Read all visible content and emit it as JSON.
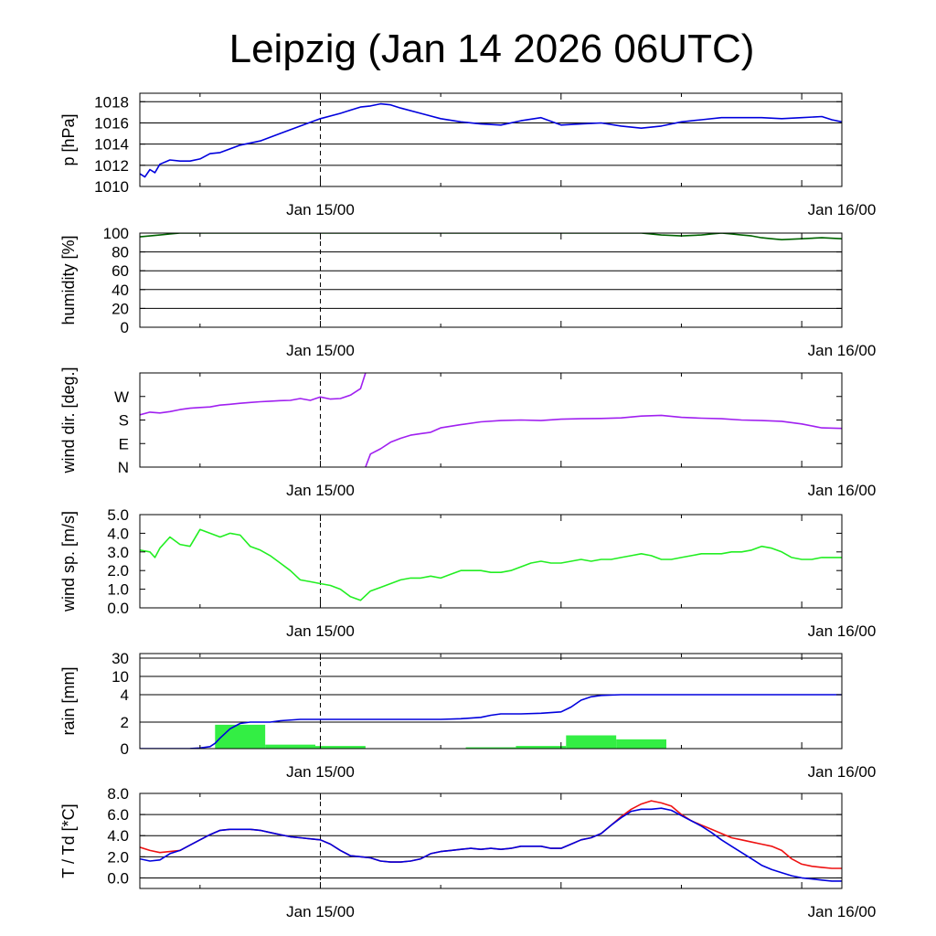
{
  "title": "Leipzig (Jan 14 2026 06UTC)",
  "x_ticks": [
    "Jan 15/00",
    "Jan 16/00"
  ],
  "chart_data": [
    {
      "type": "line",
      "ylabel": "p [hPa]",
      "ylim": [
        1010,
        1018.8
      ],
      "yticks": [
        1010,
        1012,
        1014,
        1016,
        1018
      ],
      "ytick_labels": [
        "1010",
        "1012",
        "1014",
        "1016",
        "1018"
      ],
      "grid": true,
      "series": [
        {
          "color": "#0000dd",
          "x": [
            0,
            0.5,
            1,
            1.5,
            2,
            3,
            4,
            5,
            6,
            7,
            8,
            10,
            12,
            14,
            16,
            18,
            20,
            21,
            22,
            23,
            24,
            25,
            26,
            28,
            30,
            32,
            34,
            36,
            38,
            40,
            42,
            44,
            46,
            48,
            50,
            52,
            54,
            56,
            58,
            60,
            62,
            64,
            66,
            68,
            69,
            70
          ],
          "y": [
            1011.2,
            1010.9,
            1011.6,
            1011.3,
            1012.1,
            1012.5,
            1012.4,
            1012.4,
            1012.6,
            1013.1,
            1013.2,
            1013.9,
            1014.3,
            1015.0,
            1015.7,
            1016.4,
            1016.9,
            1017.2,
            1017.5,
            1017.6,
            1017.8,
            1017.7,
            1017.4,
            1016.9,
            1016.4,
            1016.1,
            1015.9,
            1015.8,
            1016.2,
            1016.5,
            1015.8,
            1015.9,
            1016.0,
            1015.7,
            1015.5,
            1015.7,
            1016.1,
            1016.3,
            1016.5,
            1016.5,
            1016.5,
            1016.4,
            1016.5,
            1016.6,
            1016.3,
            1016.1
          ]
        }
      ]
    },
    {
      "type": "line",
      "ylabel": "humidity [%]",
      "ylim": [
        0,
        100
      ],
      "yticks": [
        0,
        20,
        40,
        60,
        80,
        100
      ],
      "ytick_labels": [
        "0",
        "20",
        "40",
        "60",
        "80",
        "100"
      ],
      "grid": true,
      "series": [
        {
          "color": "#006400",
          "x": [
            0,
            1,
            2,
            3,
            4,
            6,
            8,
            10,
            15,
            20,
            25,
            30,
            35,
            40,
            45,
            50,
            52,
            54,
            56,
            57,
            58,
            59,
            60,
            61,
            62,
            63,
            64,
            66,
            68,
            70
          ],
          "y": [
            96,
            97,
            98,
            99,
            100,
            100,
            100,
            100,
            100,
            100,
            100,
            100,
            100,
            100,
            100,
            100,
            98,
            97,
            98,
            99,
            100,
            99,
            98,
            97,
            95,
            94,
            93,
            94,
            95,
            94
          ]
        }
      ]
    },
    {
      "type": "line",
      "ylabel": "wind dir. [deg.]",
      "ylim": [
        0,
        360
      ],
      "yticks": [
        0,
        90,
        180,
        270
      ],
      "ytick_labels": [
        "N",
        "E",
        "S",
        "W"
      ],
      "grid": false,
      "series": [
        {
          "color": "#a020f0",
          "x": [
            0,
            1,
            2,
            3,
            4,
            5,
            6,
            7,
            8,
            9,
            10,
            11,
            12,
            13,
            14,
            15,
            16,
            17,
            18,
            19,
            20,
            21,
            22,
            22.5
          ],
          "y": [
            200,
            210,
            207,
            212,
            220,
            225,
            228,
            230,
            237,
            240,
            244,
            247,
            250,
            252,
            254,
            255,
            262,
            255,
            268,
            260,
            262,
            275,
            300,
            360
          ]
        },
        {
          "color": "#a020f0",
          "x": [
            22.5,
            23,
            24,
            25,
            26,
            27,
            28,
            29,
            30,
            32,
            34,
            36,
            38,
            40,
            42,
            44,
            46,
            48,
            50,
            52,
            54,
            56,
            58,
            60,
            62,
            64,
            66,
            68,
            70
          ],
          "y": [
            0,
            50,
            70,
            95,
            110,
            122,
            128,
            133,
            150,
            162,
            173,
            178,
            180,
            178,
            183,
            185,
            186,
            188,
            195,
            198,
            190,
            187,
            185,
            180,
            178,
            175,
            165,
            150,
            148
          ]
        }
      ]
    },
    {
      "type": "line",
      "ylabel": "wind sp. [m/s]",
      "ylim": [
        0,
        5
      ],
      "yticks": [
        0,
        1,
        2,
        3,
        4,
        5
      ],
      "ytick_labels": [
        "0.0",
        "1.0",
        "2.0",
        "3.0",
        "4.0",
        "5.0"
      ],
      "grid": false,
      "series": [
        {
          "color": "#22ee22",
          "x": [
            0,
            1,
            1.5,
            2,
            3,
            4,
            5,
            6,
            7,
            8,
            9,
            10,
            11,
            12,
            13,
            14,
            15,
            16,
            17,
            18,
            19,
            20,
            21,
            22,
            23,
            24,
            25,
            26,
            27,
            28,
            29,
            30,
            31,
            32,
            33,
            34,
            35,
            36,
            37,
            38,
            39,
            40,
            41,
            42,
            43,
            44,
            45,
            46,
            47,
            48,
            49,
            50,
            51,
            52,
            53,
            54,
            55,
            56,
            57,
            58,
            59,
            60,
            61,
            62,
            63,
            64,
            65,
            66,
            67,
            68,
            69,
            70
          ],
          "y": [
            3.1,
            3.0,
            2.7,
            3.2,
            3.8,
            3.4,
            3.3,
            4.2,
            4.0,
            3.8,
            4.0,
            3.9,
            3.3,
            3.1,
            2.8,
            2.4,
            2.0,
            1.5,
            1.4,
            1.3,
            1.2,
            1.0,
            0.6,
            0.4,
            0.9,
            1.1,
            1.3,
            1.5,
            1.6,
            1.6,
            1.7,
            1.6,
            1.8,
            2.0,
            2.0,
            2.0,
            1.9,
            1.9,
            2.0,
            2.2,
            2.4,
            2.5,
            2.4,
            2.4,
            2.5,
            2.6,
            2.5,
            2.6,
            2.6,
            2.7,
            2.8,
            2.9,
            2.8,
            2.6,
            2.6,
            2.7,
            2.8,
            2.9,
            2.9,
            2.9,
            3.0,
            3.0,
            3.1,
            3.3,
            3.2,
            3.0,
            2.7,
            2.6,
            2.6,
            2.7,
            2.7,
            2.7
          ]
        }
      ]
    },
    {
      "type": "bar+line",
      "ylabel": "rain [mm]",
      "yticks": [
        0,
        2,
        4,
        10,
        30
      ],
      "ytick_labels": [
        "0",
        "2",
        "4",
        "10",
        "30"
      ],
      "grid": true,
      "bars": {
        "color": "#33ee44",
        "start": [
          7.5,
          12.5,
          17.5,
          32.5,
          37.5,
          42.5,
          47.5
        ],
        "end": [
          12.5,
          17.5,
          22.5,
          37.5,
          42.5,
          47.5,
          52.5
        ],
        "values": [
          1.8,
          0.3,
          0.2,
          0.1,
          0.2,
          1.0,
          0.7
        ]
      },
      "series": [
        {
          "color": "#0000dd",
          "x": [
            0,
            4,
            5,
            6,
            7,
            7.5,
            8,
            9,
            10,
            11,
            12,
            13,
            14,
            16,
            18,
            20,
            22,
            30,
            32,
            34,
            35,
            36,
            37,
            38,
            40,
            42,
            43,
            44,
            45,
            46,
            48,
            50,
            55,
            60,
            65,
            70
          ],
          "y": [
            0,
            0,
            0.01,
            0.05,
            0.15,
            0.4,
            0.8,
            1.5,
            1.9,
            2.0,
            2.0,
            2.0,
            2.1,
            2.2,
            2.2,
            2.2,
            2.2,
            2.2,
            2.25,
            2.35,
            2.5,
            2.6,
            2.6,
            2.6,
            2.65,
            2.75,
            3.1,
            3.6,
            3.85,
            3.95,
            4.0,
            4.0,
            4.0,
            4.0,
            4.0,
            4.0
          ]
        }
      ]
    },
    {
      "type": "line",
      "ylabel": "T / Td [*C]",
      "ylim": [
        -1.0,
        8.0
      ],
      "yticks": [
        0,
        2,
        4,
        6,
        8
      ],
      "ytick_labels": [
        "0.0",
        "2.0",
        "4.0",
        "6.0",
        "8.0"
      ],
      "grid": true,
      "series": [
        {
          "color": "#ee1111",
          "x": [
            0,
            1,
            2,
            3,
            4,
            5,
            6,
            7,
            8,
            9,
            10,
            11,
            12,
            13,
            14,
            15,
            16,
            17,
            18,
            19,
            20,
            21,
            22,
            23,
            24,
            25,
            26,
            27,
            28,
            29,
            30,
            31,
            32,
            33,
            34,
            35,
            36,
            37,
            38,
            39,
            40,
            41,
            42,
            43,
            44,
            45,
            46,
            47,
            48,
            49,
            50,
            51,
            52,
            53,
            54,
            55,
            56,
            57,
            58,
            59,
            60,
            61,
            62,
            63,
            64,
            65,
            66,
            67,
            68,
            69,
            70
          ],
          "y": [
            2.9,
            2.6,
            2.4,
            2.5,
            2.6,
            3.1,
            3.6,
            4.1,
            4.5,
            4.6,
            4.6,
            4.6,
            4.5,
            4.3,
            4.1,
            3.9,
            3.8,
            3.7,
            3.6,
            3.2,
            2.6,
            2.1,
            2.0,
            1.9,
            1.6,
            1.5,
            1.5,
            1.6,
            1.8,
            2.3,
            2.5,
            2.6,
            2.7,
            2.8,
            2.7,
            2.8,
            2.7,
            2.8,
            3.0,
            3.0,
            3.0,
            2.8,
            2.8,
            3.2,
            3.6,
            3.8,
            4.2,
            5.0,
            5.8,
            6.5,
            7.0,
            7.3,
            7.1,
            6.8,
            6.0,
            5.4,
            5.0,
            4.6,
            4.2,
            3.8,
            3.6,
            3.4,
            3.2,
            3.0,
            2.6,
            1.8,
            1.3,
            1.1,
            1.0,
            0.9,
            0.9
          ]
        },
        {
          "color": "#0000dd",
          "x": [
            0,
            1,
            2,
            3,
            4,
            5,
            6,
            7,
            8,
            9,
            10,
            11,
            12,
            13,
            14,
            15,
            16,
            17,
            18,
            19,
            20,
            21,
            22,
            23,
            24,
            25,
            26,
            27,
            28,
            29,
            30,
            31,
            32,
            33,
            34,
            35,
            36,
            37,
            38,
            39,
            40,
            41,
            42,
            43,
            44,
            45,
            46,
            47,
            48,
            49,
            50,
            51,
            52,
            53,
            54,
            55,
            56,
            57,
            58,
            59,
            60,
            61,
            62,
            63,
            64,
            65,
            66,
            67,
            68,
            69,
            70
          ],
          "y": [
            1.8,
            1.6,
            1.7,
            2.3,
            2.6,
            3.1,
            3.6,
            4.1,
            4.5,
            4.6,
            4.6,
            4.6,
            4.5,
            4.3,
            4.1,
            3.9,
            3.8,
            3.7,
            3.6,
            3.2,
            2.6,
            2.1,
            2.0,
            1.9,
            1.6,
            1.5,
            1.5,
            1.6,
            1.8,
            2.3,
            2.5,
            2.6,
            2.7,
            2.8,
            2.7,
            2.8,
            2.7,
            2.8,
            3.0,
            3.0,
            3.0,
            2.8,
            2.8,
            3.2,
            3.6,
            3.8,
            4.2,
            5.0,
            5.7,
            6.3,
            6.5,
            6.5,
            6.6,
            6.4,
            5.9,
            5.4,
            4.9,
            4.3,
            3.6,
            3.0,
            2.4,
            1.8,
            1.2,
            0.8,
            0.5,
            0.2,
            0.0,
            -0.1,
            -0.2,
            -0.3,
            -0.3
          ]
        }
      ]
    }
  ]
}
